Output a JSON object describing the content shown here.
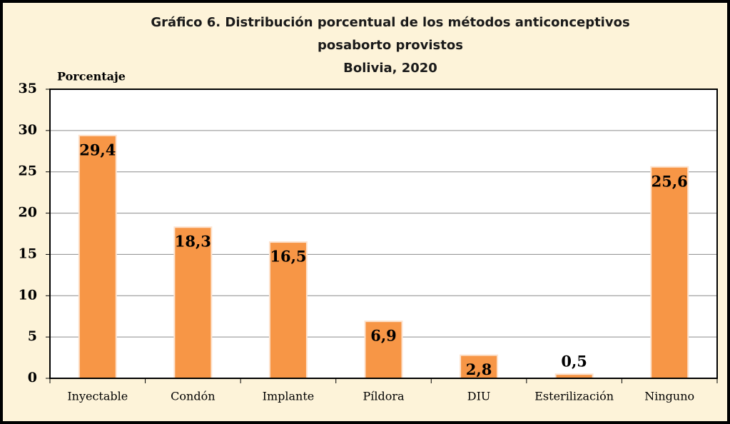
{
  "chart_data": {
    "type": "bar",
    "title": [
      "Gráfico 6. Distribución porcentual de los métodos anticonceptivos",
      "posaborto provistos",
      "Bolivia, 2020"
    ],
    "y_label": "Porcentaje",
    "categories": [
      "Inyectable",
      "Condón",
      "Implante",
      "Píldora",
      "DIU",
      "Esterilización",
      "Ninguno"
    ],
    "values": [
      29.4,
      18.3,
      16.5,
      6.9,
      2.8,
      0.5,
      25.6
    ],
    "value_labels": [
      "29,4",
      "18,3",
      "16,5",
      "6,9",
      "2,8",
      "0,5",
      "25,6"
    ],
    "color": "#f79646",
    "ylim": [
      0,
      35
    ],
    "yticks": [
      0,
      5,
      10,
      15,
      20,
      25,
      30,
      35
    ],
    "grid": true
  }
}
